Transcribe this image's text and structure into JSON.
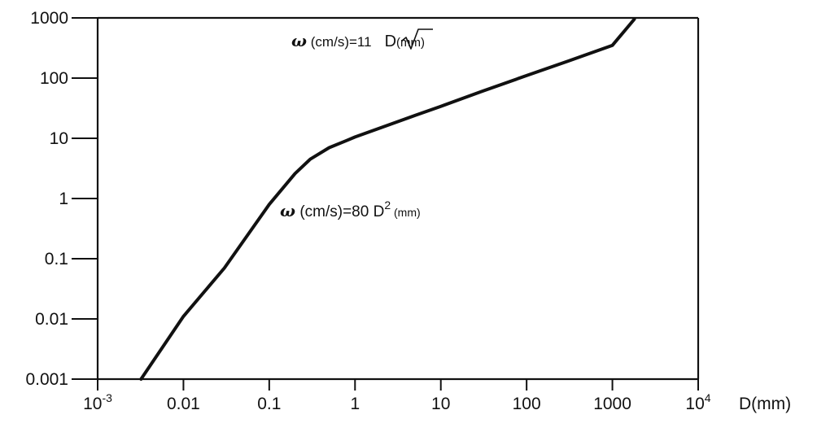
{
  "chart_data": {
    "type": "line",
    "x_scale": "log",
    "y_scale": "log",
    "xlim": [
      0.001,
      10000
    ],
    "ylim": [
      0.001,
      1000
    ],
    "grid": false,
    "x_tick_values": [
      0.001,
      0.01,
      0.1,
      1,
      10,
      100,
      1000,
      10000
    ],
    "x_tick_labels": [
      {
        "base": "10",
        "sup": "-3"
      },
      {
        "base": "0.01",
        "sup": ""
      },
      {
        "base": "0.1",
        "sup": ""
      },
      {
        "base": "1",
        "sup": ""
      },
      {
        "base": "10",
        "sup": ""
      },
      {
        "base": "100",
        "sup": ""
      },
      {
        "base": "1000",
        "sup": ""
      },
      {
        "base": "10",
        "sup": "4"
      }
    ],
    "y_tick_values": [
      0.001,
      0.01,
      0.1,
      1,
      10,
      100,
      1000
    ],
    "y_tick_labels": [
      "0.001",
      "0.01",
      "0.1",
      "1",
      "10",
      "100",
      "1000"
    ],
    "xlabel": "D(mm)",
    "ylabel": "",
    "series": [
      {
        "x": [
          0.0032,
          0.01,
          0.03,
          0.1,
          0.2,
          0.3,
          0.5,
          0.8,
          1,
          2,
          5,
          10,
          30,
          100,
          300,
          1000,
          1800
        ],
        "y": [
          0.001,
          0.011,
          0.07,
          0.8,
          2.6,
          4.5,
          7,
          9.2,
          10.5,
          15,
          24,
          34,
          60,
          110,
          190,
          350,
          950
        ]
      }
    ],
    "annotations": [
      {
        "id": "upper-formula",
        "symbol": "ω",
        "text_before": " (cm/s)=11",
        "radicand": "D",
        "text_after": "(mm)"
      },
      {
        "id": "lower-formula",
        "symbol": "ω",
        "text_before": " (cm/s)=80 D",
        "superscript": "2",
        "text_after": " (mm)"
      }
    ]
  }
}
